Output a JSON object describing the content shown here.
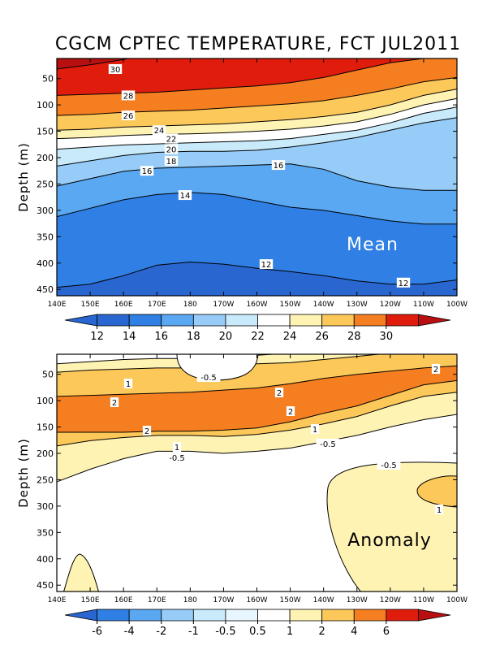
{
  "title": "CGCM CPTEC TEMPERATURE, FCT JUL2011",
  "colors": {
    "t12": "#2a66d0",
    "t14": "#2f7fe4",
    "t16": "#5aa8f2",
    "t18": "#96ccf7",
    "t20": "#c8eafb",
    "t22": "#ffffff",
    "t24": "#fff3b3",
    "t26": "#fdc85a",
    "t28": "#f57f20",
    "t30": "#e01c0c",
    "t32": "#b81010",
    "a_white": "#ffffff",
    "a05": "#fff3b3",
    "a1": "#fdc85a",
    "a2": "#f57f20",
    "a4": "#e01c0c"
  },
  "chart_data": [
    {
      "type": "contour",
      "panel": "Mean",
      "label": "Mean",
      "xlabel": "",
      "ylabel": "Depth (m)",
      "x_ticks": [
        "140E",
        "150E",
        "160E",
        "170E",
        "180",
        "170W",
        "160W",
        "150W",
        "140W",
        "130W",
        "120W",
        "110W",
        "100W"
      ],
      "y_ticks": [
        "50",
        "100",
        "150",
        "200",
        "250",
        "300",
        "350",
        "400",
        "450"
      ],
      "y_range": [
        12,
        462
      ],
      "colorbar": {
        "ticks": [
          "12",
          "14",
          "16",
          "18",
          "20",
          "22",
          "24",
          "26",
          "28",
          "30"
        ]
      },
      "isotherms": [
        {
          "value": 30,
          "depths": [
            32,
            24,
            14,
            0,
            0,
            0,
            0,
            0,
            0,
            0,
            0,
            0,
            0
          ]
        },
        {
          "value": 28,
          "depths": [
            82,
            80,
            78,
            76,
            72,
            68,
            64,
            58,
            48,
            34,
            20,
            12,
            12
          ]
        },
        {
          "value": 26,
          "depths": [
            120,
            118,
            114,
            112,
            110,
            106,
            102,
            98,
            92,
            82,
            70,
            56,
            48
          ]
        },
        {
          "value": 24,
          "depths": [
            148,
            146,
            142,
            140,
            138,
            136,
            132,
            128,
            122,
            114,
            100,
            82,
            70
          ]
        },
        {
          "value": 22,
          "depths": [
            164,
            162,
            158,
            156,
            155,
            153,
            150,
            146,
            140,
            132,
            118,
            100,
            88
          ]
        },
        {
          "value": 20,
          "depths": [
            184,
            180,
            176,
            174,
            172,
            170,
            168,
            164,
            156,
            148,
            134,
            116,
            104
          ]
        },
        {
          "value": 18,
          "depths": [
            216,
            206,
            196,
            190,
            188,
            188,
            186,
            180,
            172,
            162,
            148,
            134,
            124
          ]
        },
        {
          "value": 16,
          "depths": [
            254,
            240,
            226,
            220,
            218,
            216,
            214,
            212,
            222,
            244,
            256,
            262,
            262
          ]
        },
        {
          "value": 14,
          "depths": [
            312,
            296,
            280,
            270,
            266,
            270,
            282,
            294,
            300,
            310,
            320,
            326,
            326
          ]
        },
        {
          "value": 12,
          "depths": [
            446,
            440,
            424,
            404,
            398,
            402,
            410,
            416,
            424,
            434,
            440,
            440,
            432
          ]
        }
      ],
      "contour_labels": [
        "30",
        "28",
        "26",
        "24",
        "22",
        "20",
        "18",
        "16",
        "16",
        "14",
        "12",
        "12"
      ]
    },
    {
      "type": "contour",
      "panel": "Anomaly",
      "label": "Anomaly",
      "xlabel": "",
      "ylabel": "Depth (m)",
      "x_ticks": [
        "140E",
        "150E",
        "160E",
        "170E",
        "180",
        "170W",
        "160W",
        "150W",
        "140W",
        "130W",
        "120W",
        "110W",
        "100W"
      ],
      "y_ticks": [
        "50",
        "100",
        "150",
        "200",
        "250",
        "300",
        "350",
        "400",
        "450"
      ],
      "y_range": [
        12,
        462
      ],
      "colorbar": {
        "ticks": [
          "-6",
          "-4",
          "-2",
          "-1",
          "-0.5",
          "0.5",
          "1",
          "2",
          "4",
          "6"
        ]
      },
      "regions": [
        {
          "name": "0.5 band",
          "value": 0.5,
          "top": [
            30,
            26,
            22,
            20,
            20,
            16,
            14,
            10,
            6,
            4,
            0,
            0,
            0
          ],
          "bottom": [
            254,
            230,
            210,
            196,
            196,
            200,
            196,
            190,
            178,
            166,
            150,
            136,
            126
          ]
        },
        {
          "name": "1 band",
          "value": 1,
          "top": [
            46,
            42,
            40,
            38,
            38,
            34,
            30,
            28,
            22,
            16,
            10,
            6,
            6
          ],
          "bottom": [
            186,
            176,
            170,
            166,
            166,
            168,
            164,
            156,
            144,
            130,
            110,
            92,
            84
          ]
        },
        {
          "name": "2 band",
          "value": 2,
          "top": [
            92,
            90,
            88,
            86,
            84,
            80,
            76,
            68,
            58,
            50,
            44,
            38,
            34
          ],
          "bottom": [
            160,
            160,
            160,
            158,
            158,
            156,
            152,
            140,
            124,
            110,
            90,
            70,
            62
          ]
        },
        {
          "name": "deep 0.5",
          "value": 0.5
        },
        {
          "name": "west 0.5",
          "value": 0.5
        },
        {
          "name": "negative pocket",
          "value": -0.5
        },
        {
          "name": "east 1",
          "value": 1
        }
      ],
      "contour_labels": [
        "-0.5",
        "2",
        "1",
        "2",
        "2",
        "2",
        "2",
        "1",
        "-0.5",
        "1",
        "-0.5",
        "-0.5",
        "1"
      ]
    }
  ]
}
